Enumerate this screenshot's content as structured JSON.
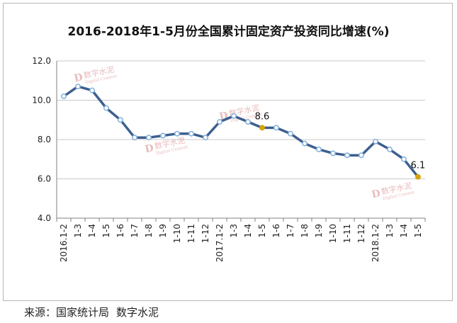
{
  "title": "2016-2018年1-5月份全国累计固定资产投资同比增速(%)",
  "source": {
    "label": "来源：",
    "org": "国家统计局",
    "brand": "数字水泥"
  },
  "watermark": {
    "logo": "D",
    "name": "数字水泥",
    "sub": "Digital Cement"
  },
  "colors": {
    "line": "#3d5f8f",
    "marker_fill": "#ffffff",
    "marker_stroke": "#7fb0d8",
    "highlight": "#d4a60d",
    "grid": "#c8c8c8",
    "axis": "#808080"
  },
  "chart_data": {
    "type": "line",
    "title": "2016-2018年1-5月份全国累计固定资产投资同比增速(%)",
    "xlabel": "",
    "ylabel": "",
    "ylim": [
      4.0,
      12.0
    ],
    "yticks": [
      "4.0",
      "6.0",
      "8.0",
      "10.0",
      "12.0"
    ],
    "grid": true,
    "legend": "none",
    "categories": [
      "1-2",
      "1-3",
      "1-4",
      "1-5",
      "1-6",
      "1-7",
      "1-8",
      "1-9",
      "1-10",
      "1-11",
      "1-12",
      "1-2",
      "1-3",
      "1-4",
      "1-5",
      "1-6",
      "1-7",
      "1-8",
      "1-9",
      "1-10",
      "1-11",
      "1-12",
      "1-2",
      "1-3",
      "1-4",
      "1-5"
    ],
    "year_labels": [
      {
        "index": 0,
        "label": "2016"
      },
      {
        "index": 11,
        "label": "2017"
      },
      {
        "index": 22,
        "label": "2018"
      }
    ],
    "series": [
      {
        "values": [
          10.2,
          10.7,
          10.5,
          9.6,
          9.0,
          8.1,
          8.1,
          8.2,
          8.3,
          8.3,
          8.1,
          8.9,
          9.2,
          8.9,
          8.6,
          8.6,
          8.3,
          7.8,
          7.5,
          7.3,
          7.2,
          7.2,
          7.9,
          7.5,
          7.0,
          6.1
        ]
      }
    ],
    "annotations": [
      {
        "index": 14,
        "label": "8.6"
      },
      {
        "index": 25,
        "label": "6.1"
      }
    ]
  }
}
